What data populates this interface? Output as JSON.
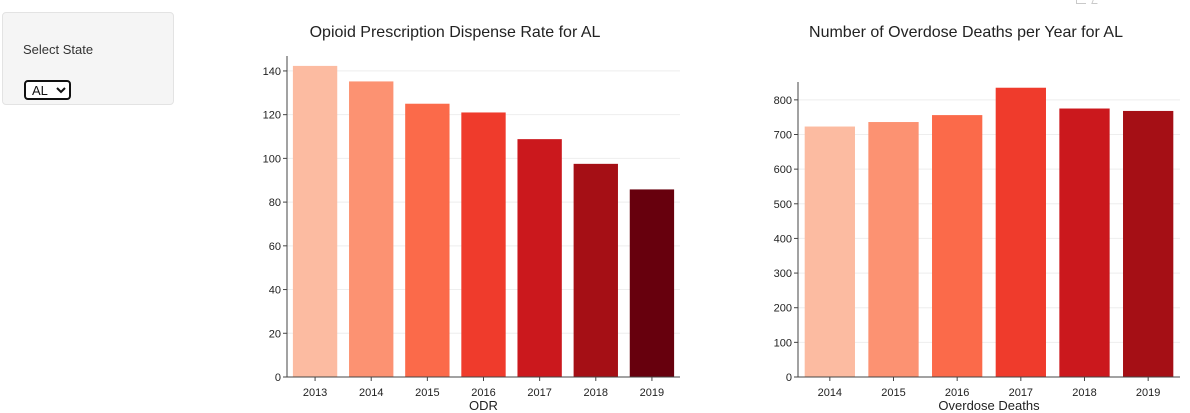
{
  "sidebar": {
    "label": "Select State",
    "selected": "AL"
  },
  "chart_data": [
    {
      "type": "bar",
      "title": "Opioid Prescription Dispense Rate for AL",
      "xlabel": "ODR",
      "ylabel": "",
      "categories": [
        "2013",
        "2014",
        "2015",
        "2016",
        "2017",
        "2018",
        "2019"
      ],
      "values": [
        142.3,
        135.2,
        125.0,
        121.0,
        108.8,
        97.5,
        85.8
      ],
      "colors": [
        "#fcbba1",
        "#fc9272",
        "#fb6a4a",
        "#ef3b2c",
        "#cb181d",
        "#a50f15",
        "#67000d"
      ],
      "ylim": [
        0,
        145
      ],
      "yticks": [
        0,
        20,
        40,
        60,
        80,
        100,
        120,
        140
      ],
      "grid": true,
      "legend": "none"
    },
    {
      "type": "bar",
      "title": "Number of Overdose Deaths per Year for AL",
      "xlabel": "Overdose Deaths",
      "ylabel": "",
      "categories": [
        "2014",
        "2015",
        "2016",
        "2017",
        "2018",
        "2019"
      ],
      "values": [
        723,
        736,
        756,
        835,
        775,
        768
      ],
      "colors": [
        "#fcbba1",
        "#fc9272",
        "#fb6a4a",
        "#ef3b2c",
        "#cb181d",
        "#a50f15"
      ],
      "ylim": [
        0,
        840
      ],
      "yticks": [
        0,
        100,
        200,
        300,
        400,
        500,
        600,
        700,
        800
      ],
      "grid": true,
      "legend": "none"
    }
  ]
}
